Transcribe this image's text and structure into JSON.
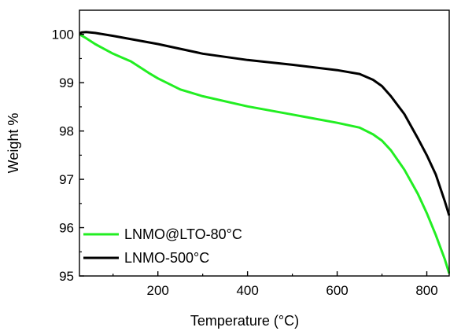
{
  "chart_data": {
    "type": "line",
    "xlabel": "Temperature (°C)",
    "ylabel": "Weight %",
    "xlim": [
      25,
      850
    ],
    "ylim": [
      95,
      100.5
    ],
    "xticks": [
      200,
      400,
      600,
      800
    ],
    "xtick_labels": [
      "200",
      "400",
      "600",
      "800"
    ],
    "yticks": [
      95,
      96,
      97,
      98,
      99,
      100
    ],
    "ytick_labels": [
      "95",
      "96",
      "97",
      "98",
      "99",
      "100"
    ],
    "legend_position": "bottom-left",
    "series": [
      {
        "name": "LNMO@LTO-80°C",
        "color": "#22ee22",
        "x": [
          25,
          40,
          60,
          80,
          100,
          120,
          140,
          160,
          180,
          200,
          250,
          300,
          400,
          500,
          600,
          650,
          680,
          700,
          720,
          750,
          780,
          800,
          820,
          840,
          850
        ],
        "y": [
          100.0,
          99.92,
          99.8,
          99.7,
          99.6,
          99.52,
          99.44,
          99.32,
          99.2,
          99.09,
          98.86,
          98.72,
          98.51,
          98.34,
          98.17,
          98.07,
          97.93,
          97.8,
          97.6,
          97.2,
          96.7,
          96.3,
          95.85,
          95.35,
          95.05
        ]
      },
      {
        "name": "LNMO-500°C",
        "color": "#000000",
        "x": [
          25,
          30,
          40,
          60,
          100,
          200,
          300,
          400,
          500,
          600,
          650,
          680,
          700,
          720,
          750,
          780,
          800,
          820,
          840,
          850
        ],
        "y": [
          100.02,
          100.04,
          100.05,
          100.03,
          99.97,
          99.8,
          99.6,
          99.47,
          99.37,
          99.26,
          99.18,
          99.06,
          98.93,
          98.72,
          98.35,
          97.85,
          97.5,
          97.1,
          96.55,
          96.25
        ]
      }
    ]
  }
}
